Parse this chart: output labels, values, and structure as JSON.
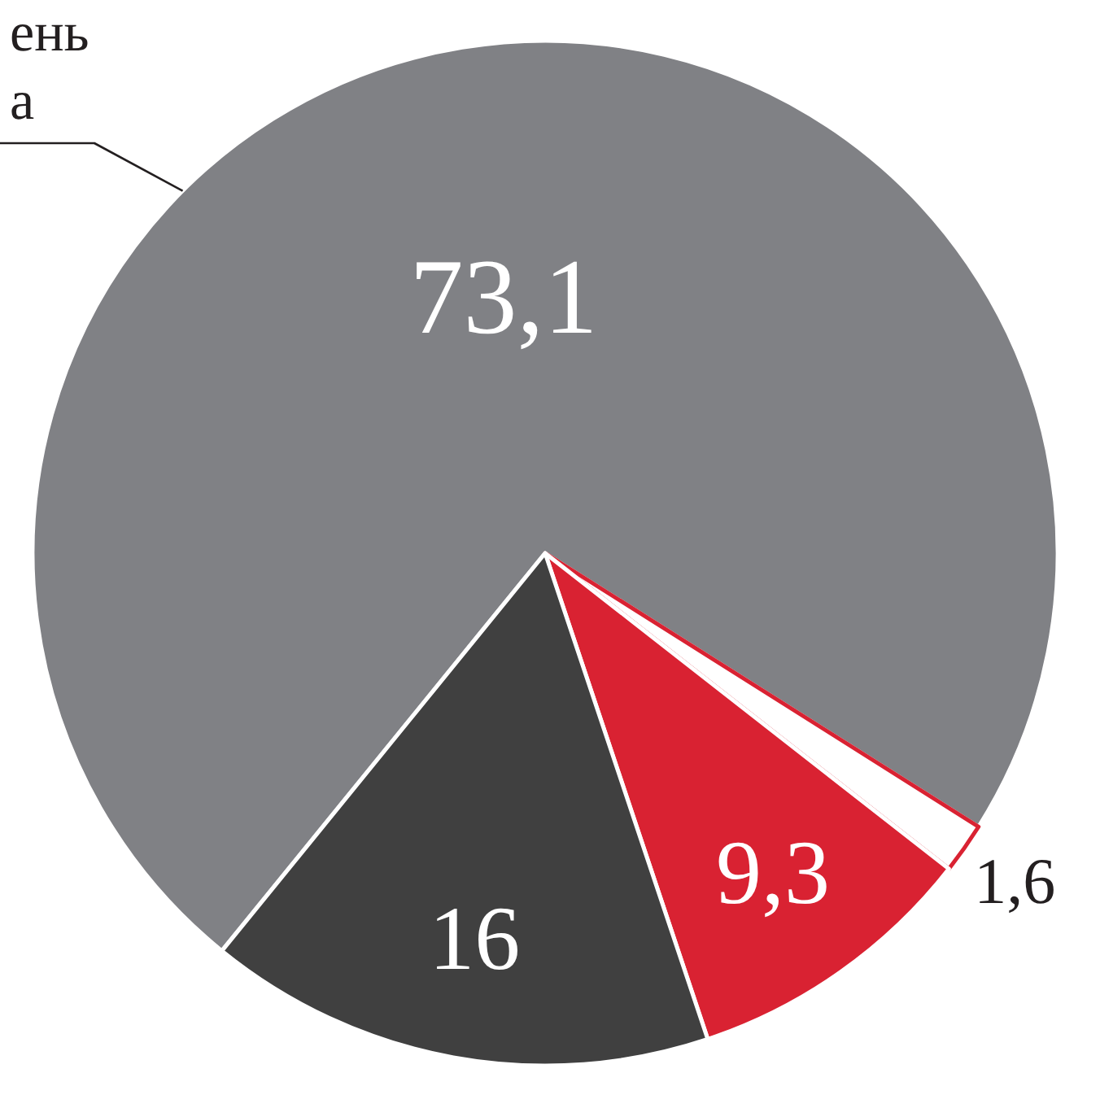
{
  "chart_data": {
    "type": "pie",
    "categories": [
      "ень\nа",
      null,
      null,
      null
    ],
    "values": [
      73.1,
      1.6,
      9.3,
      16
    ],
    "colors": [
      "#808185",
      "#ffffff",
      "#d92232",
      "#404040"
    ],
    "value_labels": [
      "73,1",
      "1,6",
      "9,3",
      "16"
    ]
  }
}
